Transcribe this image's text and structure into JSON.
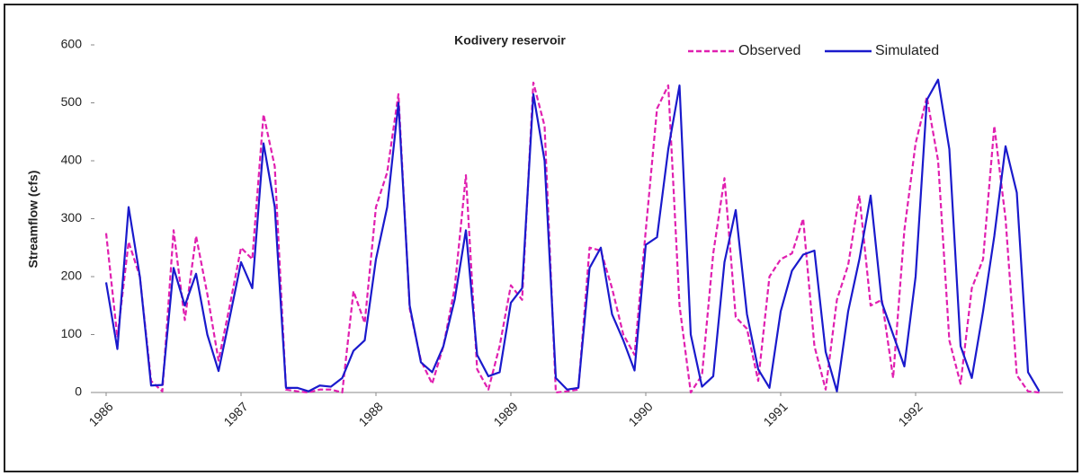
{
  "chart_data": {
    "type": "line",
    "title": "Kodivery reservoir",
    "y_label": "Streamflow (cfs)",
    "categories": [
      "1986",
      null,
      null,
      null,
      null,
      null,
      null,
      null,
      null,
      null,
      null,
      null,
      "1987",
      null,
      null,
      null,
      null,
      null,
      null,
      null,
      null,
      null,
      null,
      null,
      "1988",
      null,
      null,
      null,
      null,
      null,
      null,
      null,
      null,
      null,
      null,
      null,
      "1989",
      null,
      null,
      null,
      null,
      null,
      null,
      null,
      null,
      null,
      null,
      null,
      "1990",
      null,
      null,
      null,
      null,
      null,
      null,
      null,
      null,
      null,
      null,
      null,
      "1991",
      null,
      null,
      null,
      null,
      null,
      null,
      null,
      null,
      null,
      null,
      null,
      "1992",
      null,
      null,
      null,
      null,
      null,
      null,
      null,
      null,
      null,
      null,
      null
    ],
    "series": [
      {
        "name": "Observed",
        "color": "#e020b0",
        "dashed": true,
        "values": [
          275,
          95,
          260,
          200,
          20,
          2,
          280,
          125,
          270,
          170,
          55,
          150,
          250,
          230,
          480,
          390,
          5,
          2,
          0,
          5,
          5,
          0,
          175,
          120,
          320,
          380,
          515,
          145,
          55,
          15,
          80,
          180,
          375,
          40,
          5,
          80,
          185,
          160,
          535,
          460,
          0,
          2,
          5,
          250,
          245,
          180,
          100,
          65,
          280,
          490,
          530,
          150,
          0,
          30,
          240,
          370,
          130,
          110,
          20,
          200,
          230,
          240,
          300,
          80,
          5,
          160,
          220,
          340,
          150,
          160,
          25,
          280,
          430,
          510,
          400,
          90,
          15,
          180,
          230,
          460,
          300,
          30,
          2,
          0
        ]
      },
      {
        "name": "Simulated",
        "color": "#1a1acc",
        "dashed": false,
        "values": [
          190,
          75,
          320,
          200,
          12,
          13,
          215,
          150,
          205,
          100,
          37,
          130,
          225,
          180,
          430,
          320,
          8,
          8,
          2,
          12,
          10,
          25,
          72,
          90,
          230,
          320,
          500,
          150,
          52,
          35,
          80,
          160,
          280,
          65,
          28,
          35,
          155,
          180,
          515,
          400,
          25,
          5,
          8,
          215,
          250,
          135,
          90,
          38,
          255,
          268,
          420,
          530,
          100,
          10,
          28,
          225,
          315,
          135,
          40,
          8,
          140,
          210,
          238,
          245,
          70,
          2,
          140,
          230,
          340,
          155,
          100,
          45,
          200,
          505,
          540,
          420,
          80,
          25,
          140,
          270,
          425,
          345,
          35,
          2
        ]
      }
    ],
    "ylim": [
      0,
      600
    ],
    "yticks": [
      0,
      100,
      200,
      300,
      400,
      500,
      600
    ]
  }
}
